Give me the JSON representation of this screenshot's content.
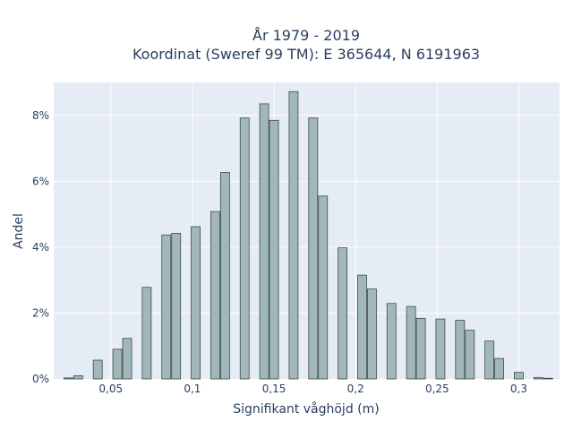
{
  "chart_data": {
    "type": "bar",
    "title_line1": "År 1979 - 2019",
    "title_line2": "Koordinat (Sweref 99 TM): E 365644, N 6191963",
    "xlabel": "Signifikant våghöjd (m)",
    "ylabel": "Andel",
    "xlim": [
      0.015,
      0.325
    ],
    "ylim": [
      0,
      9.0
    ],
    "x_ticks": [
      {
        "value": 0.05,
        "label": "0,05"
      },
      {
        "value": 0.1,
        "label": "0,1"
      },
      {
        "value": 0.15,
        "label": "0,15"
      },
      {
        "value": 0.2,
        "label": "0,2"
      },
      {
        "value": 0.25,
        "label": "0,25"
      },
      {
        "value": 0.3,
        "label": "0,3"
      }
    ],
    "y_ticks": [
      {
        "value": 0,
        "label": "0%"
      },
      {
        "value": 2,
        "label": "2%"
      },
      {
        "value": 4,
        "label": "4%"
      },
      {
        "value": 6,
        "label": "6%"
      },
      {
        "value": 8,
        "label": "8%"
      }
    ],
    "bin_width": 0.0055,
    "bars": [
      {
        "x": 0.024,
        "y": 0.03
      },
      {
        "x": 0.03,
        "y": 0.1
      },
      {
        "x": 0.042,
        "y": 0.57
      },
      {
        "x": 0.054,
        "y": 0.9
      },
      {
        "x": 0.06,
        "y": 1.23
      },
      {
        "x": 0.072,
        "y": 2.78
      },
      {
        "x": 0.084,
        "y": 4.37
      },
      {
        "x": 0.09,
        "y": 4.42
      },
      {
        "x": 0.102,
        "y": 4.62
      },
      {
        "x": 0.114,
        "y": 5.08
      },
      {
        "x": 0.12,
        "y": 6.27
      },
      {
        "x": 0.132,
        "y": 7.92
      },
      {
        "x": 0.144,
        "y": 8.35
      },
      {
        "x": 0.15,
        "y": 7.85
      },
      {
        "x": 0.162,
        "y": 8.72
      },
      {
        "x": 0.174,
        "y": 7.92
      },
      {
        "x": 0.18,
        "y": 5.55
      },
      {
        "x": 0.192,
        "y": 3.98
      },
      {
        "x": 0.204,
        "y": 3.15
      },
      {
        "x": 0.21,
        "y": 2.73
      },
      {
        "x": 0.222,
        "y": 2.29
      },
      {
        "x": 0.234,
        "y": 2.2
      },
      {
        "x": 0.24,
        "y": 1.84
      },
      {
        "x": 0.252,
        "y": 1.82
      },
      {
        "x": 0.264,
        "y": 1.78
      },
      {
        "x": 0.27,
        "y": 1.48
      },
      {
        "x": 0.282,
        "y": 1.15
      },
      {
        "x": 0.288,
        "y": 0.62
      },
      {
        "x": 0.3,
        "y": 0.2
      },
      {
        "x": 0.312,
        "y": 0.04
      },
      {
        "x": 0.318,
        "y": 0.02
      }
    ],
    "grid": true,
    "legend": false,
    "colors": {
      "bar_fill": "#a2b8b8",
      "bar_edge": "#3d4a4a",
      "plot_bg": "#e5ecf6",
      "text": "#2a3f5f"
    }
  }
}
